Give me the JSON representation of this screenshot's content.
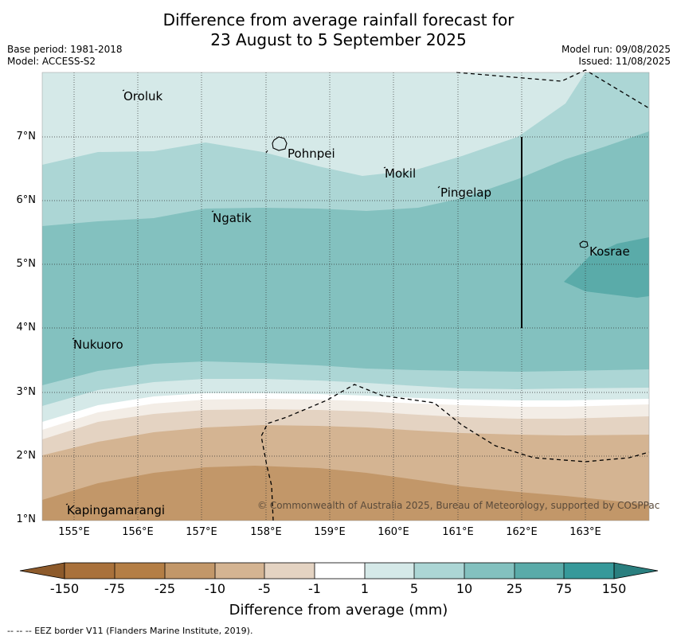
{
  "title": {
    "line1": "Difference from average rainfall forecast for",
    "line2": "23 August to 5 September 2025"
  },
  "meta_left": {
    "base_period": "Base period: 1981-2018",
    "model": "Model: ACCESS-S2"
  },
  "meta_right": {
    "model_run": "Model run: 09/08/2025",
    "issued": "Issued: 11/08/2025"
  },
  "axes": {
    "lat_labels": [
      "7°N",
      "6°N",
      "5°N",
      "4°N",
      "3°N",
      "2°N",
      "1°N"
    ],
    "lon_labels": [
      "155°E",
      "156°E",
      "157°E",
      "158°E",
      "159°E",
      "160°E",
      "161°E",
      "162°E",
      "163°E"
    ]
  },
  "places": {
    "oroluk": "Oroluk",
    "pohnpei": "Pohnpei",
    "mokil": "Mokil",
    "pingelap": "Pingelap",
    "ngatik": "Ngatik",
    "kosrae": "Kosrae",
    "nukuoro": "Nukuoro",
    "kapingamarangi": "Kapingamarangi"
  },
  "copyright": "© Commonwealth of Australia 2025, Bureau of Meteorology, supported by COSPPac",
  "colorbar": {
    "title": "Difference from average (mm)",
    "ticks": [
      "-150",
      "-75",
      "-25",
      "-10",
      "-5",
      "-1",
      "1",
      "5",
      "10",
      "25",
      "75",
      "150"
    ],
    "colors": [
      "#a9713b",
      "#b47e45",
      "#c29769",
      "#d4b492",
      "#e4d3c2",
      "#f3ede6",
      "#ffffff",
      "#d5e9e8",
      "#acd6d5",
      "#83c1bf",
      "#5aaba9",
      "#37999a",
      "#2a7f7f"
    ]
  },
  "footnote": "-- -- -- EEZ border V11 (Flanders Marine Institute, 2019)."
}
